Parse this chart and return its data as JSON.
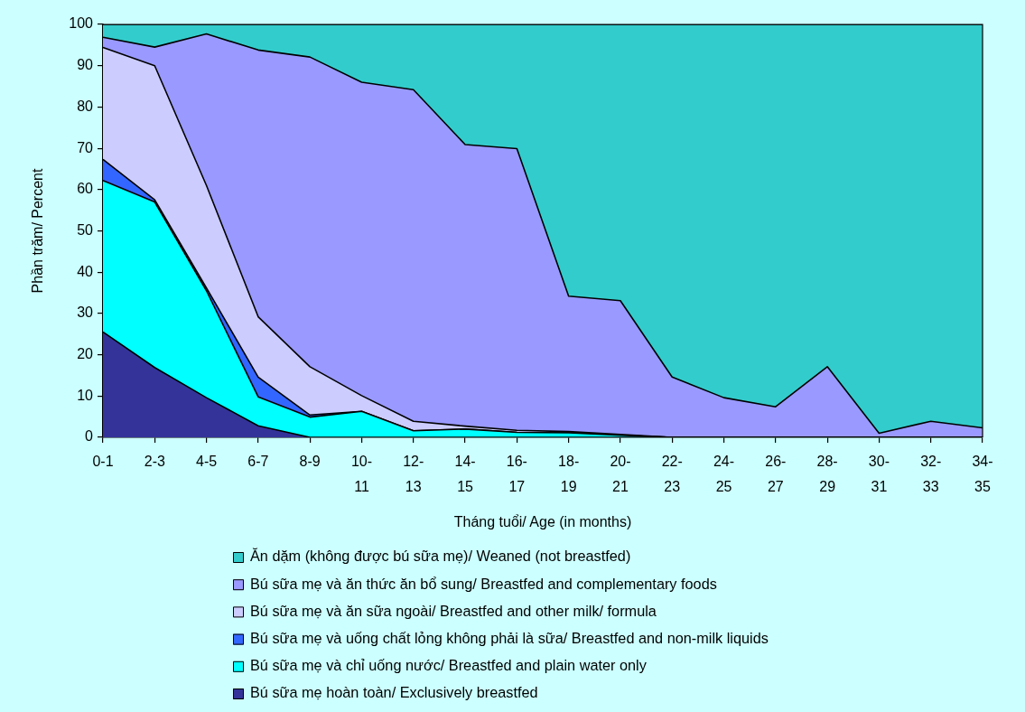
{
  "chart_data": {
    "type": "area",
    "stacked": true,
    "xlabel": "Tháng tuổi/ Age (in months)",
    "ylabel": "Phần trăm/ Percent",
    "legend": "bottom",
    "categories": [
      "0-1",
      "2-3",
      "4-5",
      "6-7",
      "8-9",
      "10-11",
      "12-13",
      "14-15",
      "16-17",
      "18-19",
      "20-21",
      "22-23",
      "24-25",
      "26-27",
      "28-29",
      "30-31",
      "32-33",
      "34-35"
    ],
    "ylim": [
      0,
      100
    ],
    "yticks": [
      0,
      10,
      20,
      30,
      40,
      50,
      60,
      70,
      80,
      90,
      100
    ],
    "series": [
      {
        "name": "Bú sữa mẹ hoàn toàn/ Exclusively breastfed",
        "color": "#333399",
        "values": [
          25.5,
          16.9,
          9.6,
          2.8,
          0,
          0,
          0,
          0,
          0,
          0,
          0,
          0,
          0,
          0,
          0,
          0,
          0,
          0
        ]
      },
      {
        "name": "Bú sữa mẹ và chỉ uống nước/ Breastfed and plain water only",
        "color": "#00ffff",
        "values": [
          36.7,
          40.1,
          25.9,
          7.0,
          4.9,
          6.3,
          1.6,
          2.0,
          1.2,
          1.1,
          0.5,
          0,
          0,
          0,
          0,
          0,
          0,
          0
        ]
      },
      {
        "name": "Bú sữa mẹ và uống chất lỏng không phải là sữa/ Breastfed and non-milk liquids",
        "color": "#3366ff",
        "values": [
          5.1,
          0.5,
          0.7,
          4.8,
          0.5,
          0,
          0,
          0,
          0,
          0,
          0,
          0,
          0,
          0,
          0,
          0,
          0,
          0
        ]
      },
      {
        "name": "Bú sữa mẹ và ăn sữa ngoài/ Breastfed and other milk/ formula",
        "color": "#ccccff",
        "values": [
          27.1,
          32.5,
          24.8,
          14.6,
          11.7,
          3.8,
          2.3,
          0.7,
          0.5,
          0.3,
          0.2,
          0,
          0,
          0,
          0,
          0,
          0,
          0
        ]
      },
      {
        "name": "Bú sữa mẹ và ăn thức ăn bổ sung/ Breastfed and complementary foods",
        "color": "#9999ff",
        "values": [
          2.5,
          4.5,
          36.7,
          64.6,
          75.0,
          75.9,
          80.3,
          68.2,
          68.2,
          32.8,
          32.4,
          14.6,
          9.6,
          7.4,
          17.1,
          1.0,
          3.9,
          2.3
        ]
      },
      {
        "name": "Ăn dặm (không được bú sữa mẹ)/ Weaned (not breastfed)",
        "color": "#33cccc",
        "values": [
          3.1,
          5.5,
          2.3,
          6.2,
          7.9,
          14.0,
          15.8,
          29.1,
          30.1,
          65.8,
          66.9,
          85.4,
          90.4,
          92.6,
          82.9,
          99.0,
          96.1,
          97.7
        ]
      }
    ]
  }
}
